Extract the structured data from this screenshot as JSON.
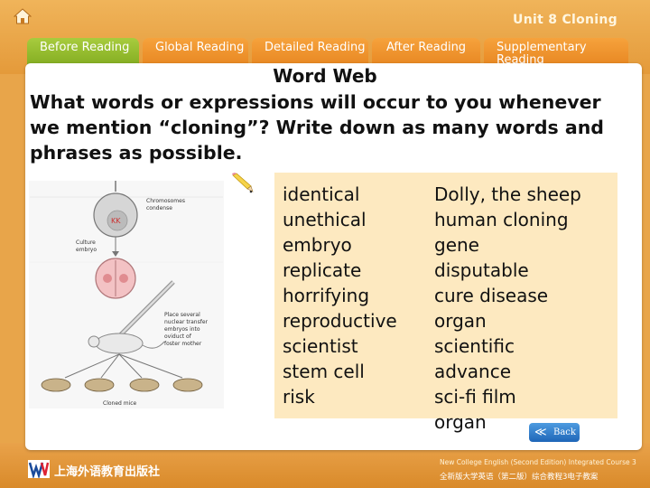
{
  "header": {
    "unit_title": "Unit 8 Cloning",
    "tabs": [
      {
        "label": "Before Reading",
        "active": true
      },
      {
        "label": "Global Reading",
        "active": false
      },
      {
        "label": "Detailed Reading",
        "active": false
      },
      {
        "label": "After Reading",
        "active": false
      },
      {
        "label": "Supplementary Reading",
        "active": false
      }
    ]
  },
  "main": {
    "title": "Word Web",
    "question": "What words or expressions will occur to you whenever we mention “cloning”? Write down as many words and phrases as possible.",
    "figure_labels": {
      "chromosomes": "Chromosomes condense",
      "culture": "Culture embryo",
      "place": "Place several nuclear transfer embryos into oviduct of foster mother",
      "cloned": "Cloned mice"
    },
    "words_col1": [
      "identical",
      "unethical",
      "embryo",
      "replicate",
      "horrifying",
      "reproductive",
      "scientist",
      "stem cell",
      "risk"
    ],
    "words_col2": [
      "Dolly, the sheep",
      "human cloning",
      "gene",
      "disputable",
      "cure disease",
      "organ",
      "scientific",
      "advance",
      "sci-fi film",
      "organ"
    ]
  },
  "footer": {
    "back_label": "Back",
    "publisher": "上海外语教育出版社",
    "course_en": "New College English (Second Edition) Integrated Course 3",
    "course_cn": "全新版大学英语（第二版）综合教程3电子教案"
  },
  "colors": {
    "accent_orange": "#e6841f",
    "active_tab_green": "#8fb52a",
    "word_box": "#fde9c0",
    "back_blue": "#2a73c4"
  }
}
